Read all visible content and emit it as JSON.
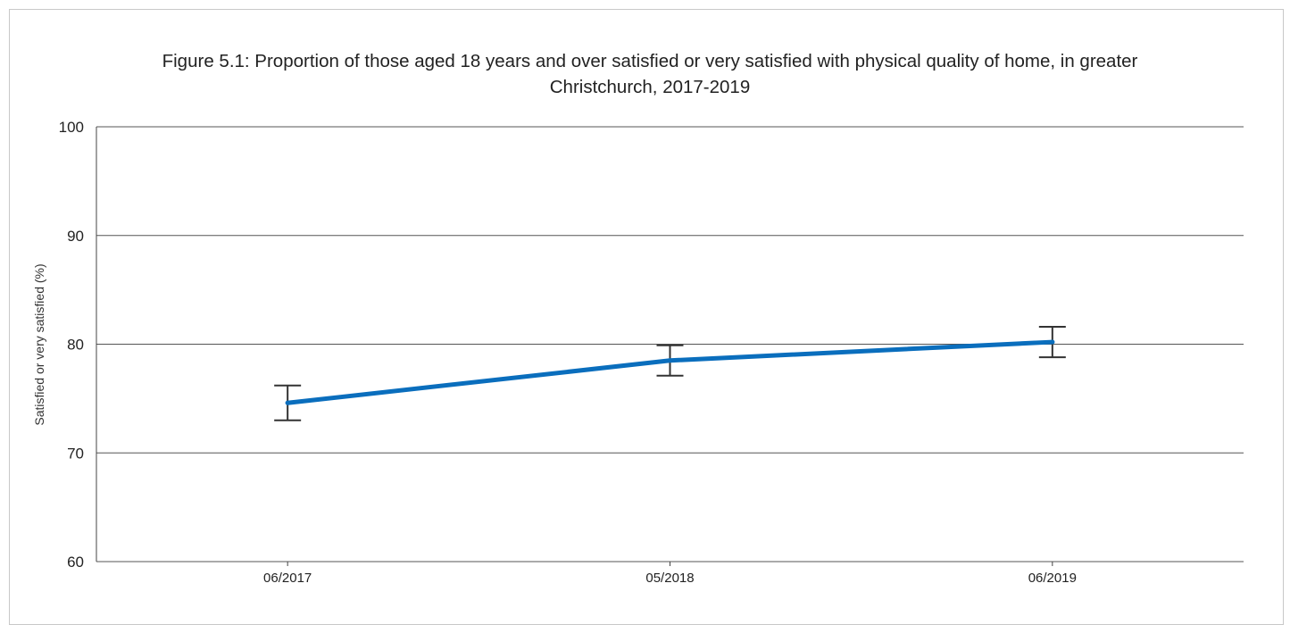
{
  "chart_data": {
    "type": "line",
    "title": "Figure 5.1: Proportion of those aged 18 years and over satisfied or very satisfied with physical quality of home, in greater\nChristchurch, 2017-2019",
    "xlabel": "",
    "ylabel": "Satisfied or very satisfied (%)",
    "categories": [
      "06/2017",
      "05/2018",
      "06/2019"
    ],
    "series": [
      {
        "values": [
          74.6,
          78.5,
          80.2
        ],
        "error_low": [
          73.0,
          77.1,
          78.8
        ],
        "error_high": [
          76.2,
          79.9,
          81.6
        ],
        "color": "#0a6ebd"
      }
    ],
    "ylim": [
      60,
      100
    ],
    "yticks": [
      60,
      70,
      80,
      90,
      100
    ],
    "grid": true,
    "legend": "none",
    "error_bar_color": "#333333",
    "gridline_color": "#555555"
  }
}
